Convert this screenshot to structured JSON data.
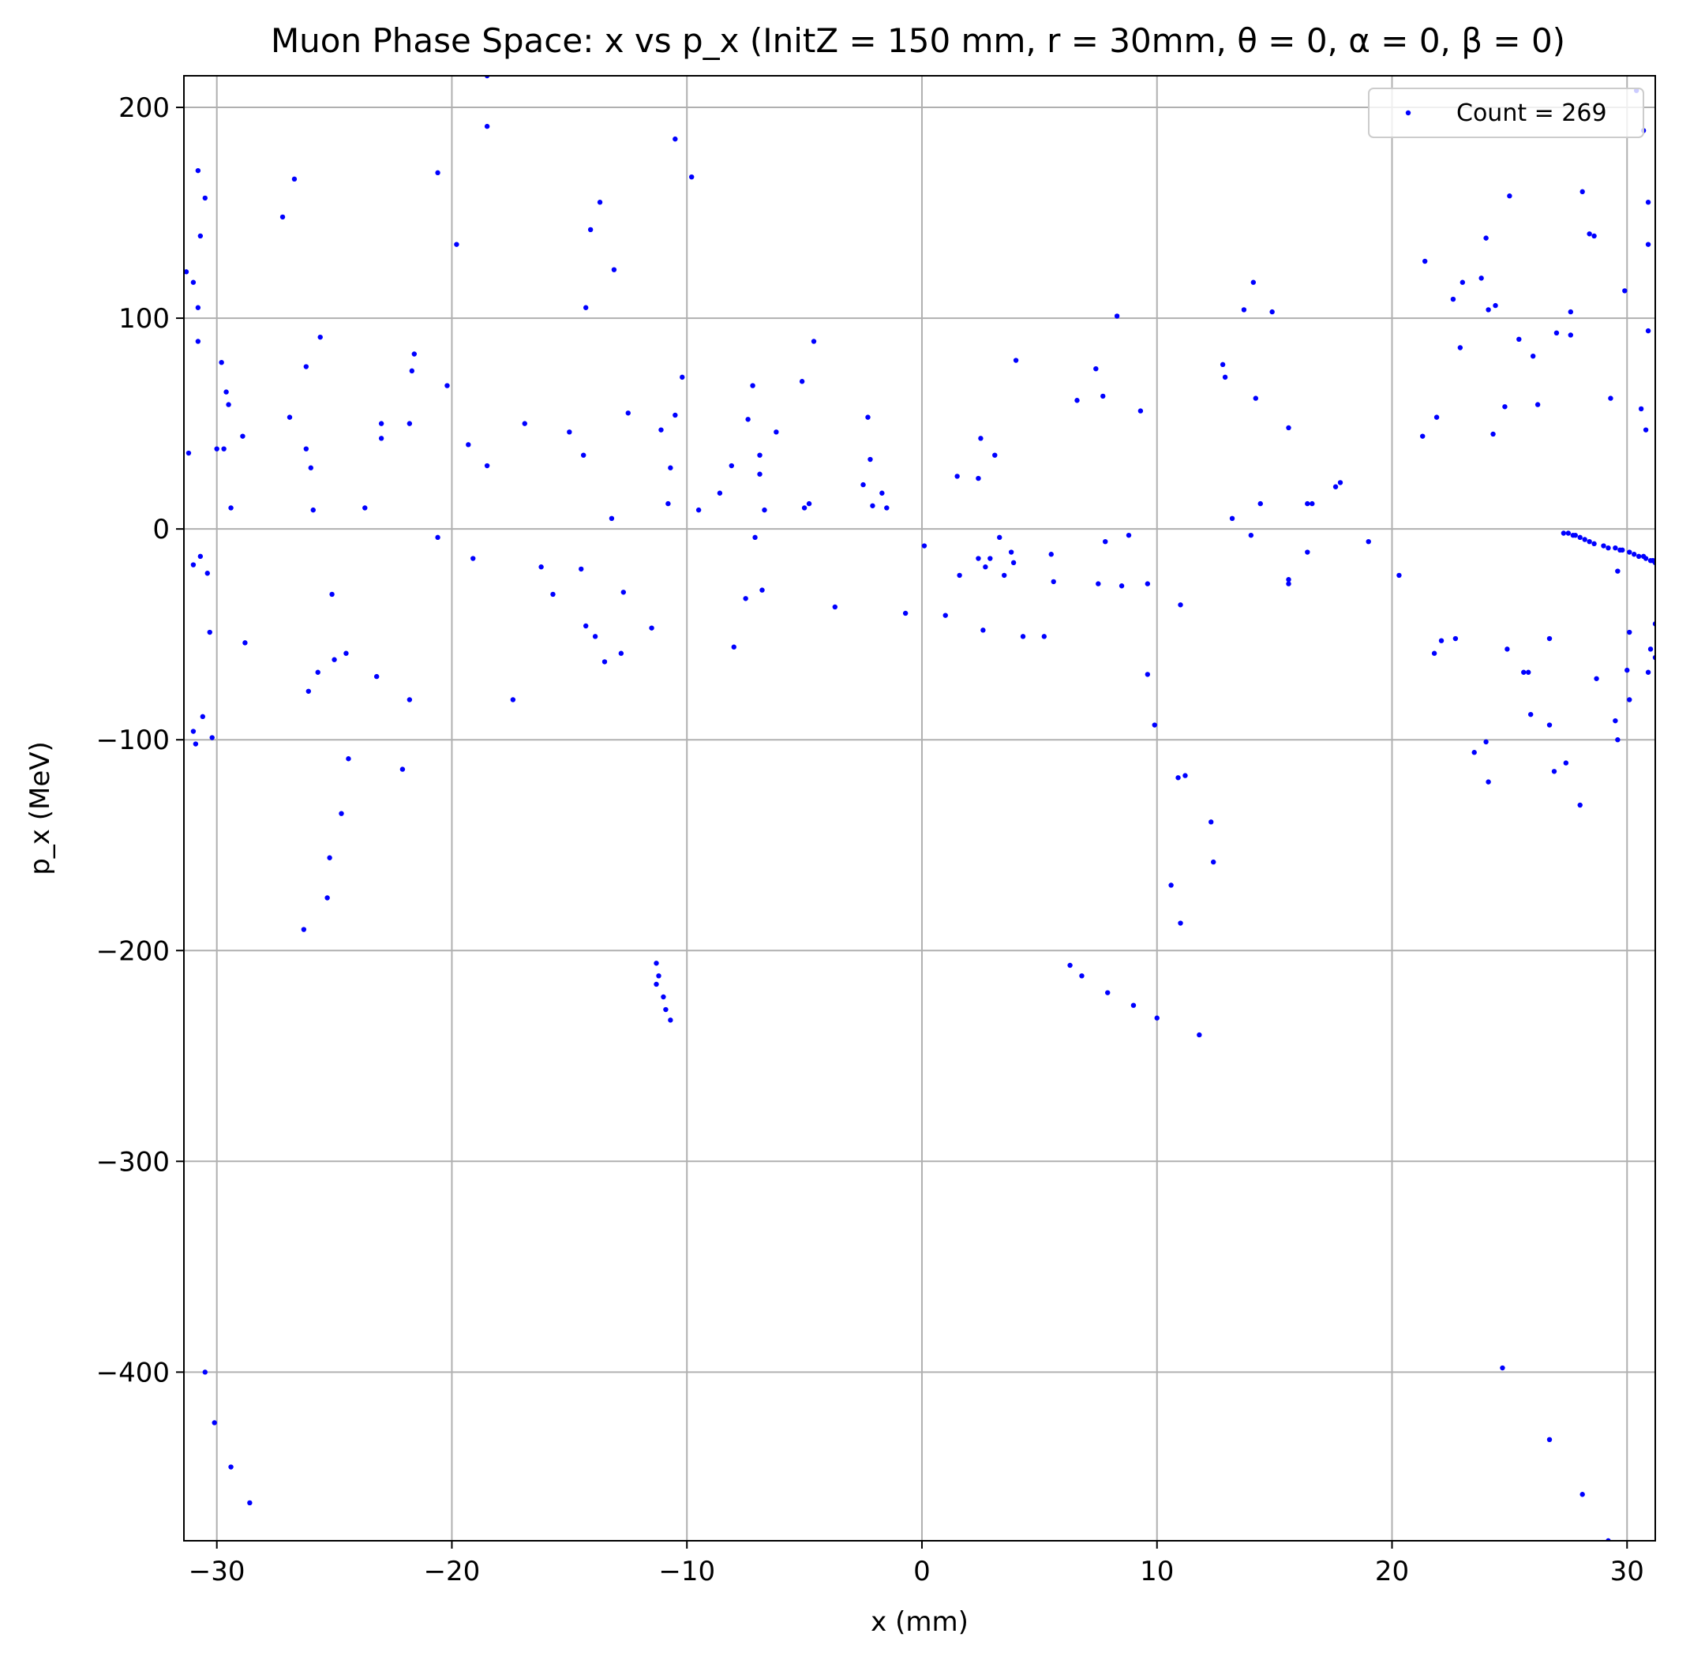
{
  "chart_data": {
    "type": "scatter",
    "title": "Muon Phase Space: x vs p_x (InitZ = 150 mm, r = 30mm, θ = 0, α = 0, β = 0)",
    "xlabel": "x (mm)",
    "ylabel": "p_x (MeV)",
    "xlim": [
      -31.4,
      31.2
    ],
    "ylim": [
      -480,
      215
    ],
    "xticks": [
      -30,
      -20,
      -10,
      0,
      10,
      20,
      30
    ],
    "yticks": [
      200,
      100,
      0,
      -100,
      -200,
      -300,
      -400
    ],
    "xtick_labels": [
      "−30",
      "−20",
      "−10",
      "0",
      "10",
      "20",
      "30"
    ],
    "ytick_labels": [
      "200",
      "100",
      "0",
      "−100",
      "−200",
      "−300",
      "−400"
    ],
    "grid": true,
    "legend_position": "top-right",
    "legend": "Count = 269",
    "marker_color": "#0000ff",
    "series": [
      {
        "name": "Count = 269",
        "points": [
          [
            -31.3,
            122
          ],
          [
            -31.2,
            36
          ],
          [
            -31.0,
            -17
          ],
          [
            -31.0,
            117
          ],
          [
            -31.0,
            -96
          ],
          [
            -30.9,
            -102
          ],
          [
            -30.8,
            170
          ],
          [
            -30.8,
            105
          ],
          [
            -30.8,
            89
          ],
          [
            -30.7,
            -13
          ],
          [
            -30.7,
            139
          ],
          [
            -30.6,
            -89
          ],
          [
            -30.5,
            157
          ],
          [
            -30.4,
            -21
          ],
          [
            -30.5,
            -400
          ],
          [
            -30.3,
            -49
          ],
          [
            -30.2,
            -99
          ],
          [
            -30.1,
            -424
          ],
          [
            -30.0,
            38
          ],
          [
            -29.8,
            79
          ],
          [
            -29.7,
            38
          ],
          [
            -29.6,
            65
          ],
          [
            -29.5,
            59
          ],
          [
            -29.4,
            -445
          ],
          [
            -29.4,
            10
          ],
          [
            -28.9,
            44
          ],
          [
            -28.8,
            -54
          ],
          [
            -28.6,
            -462
          ],
          [
            -27.2,
            148
          ],
          [
            -26.9,
            53
          ],
          [
            -26.7,
            166
          ],
          [
            -26.3,
            -190
          ],
          [
            -26.2,
            77
          ],
          [
            -26.2,
            38
          ],
          [
            -26.1,
            -77
          ],
          [
            -26.0,
            29
          ],
          [
            -25.9,
            9
          ],
          [
            -25.7,
            -68
          ],
          [
            -25.6,
            91
          ],
          [
            -25.3,
            -175
          ],
          [
            -25.2,
            -156
          ],
          [
            -25.1,
            -31
          ],
          [
            -25.0,
            -62
          ],
          [
            -24.7,
            -135
          ],
          [
            -24.5,
            -59
          ],
          [
            -24.4,
            -109
          ],
          [
            -23.7,
            10
          ],
          [
            -23.2,
            -70
          ],
          [
            -23.0,
            50
          ],
          [
            -23.0,
            43
          ],
          [
            -22.1,
            -114
          ],
          [
            -21.8,
            -81
          ],
          [
            -21.8,
            50
          ],
          [
            -21.7,
            75
          ],
          [
            -21.6,
            83
          ],
          [
            -20.6,
            169
          ],
          [
            -20.6,
            -4
          ],
          [
            -20.2,
            68
          ],
          [
            -19.8,
            135
          ],
          [
            -19.3,
            40
          ],
          [
            -19.1,
            -14
          ],
          [
            -18.5,
            215
          ],
          [
            -18.5,
            30
          ],
          [
            -18.5,
            191
          ],
          [
            -17.4,
            -81
          ],
          [
            -16.9,
            50
          ],
          [
            -16.2,
            -18
          ],
          [
            -15.7,
            -31
          ],
          [
            -15.0,
            46
          ],
          [
            -14.5,
            -19
          ],
          [
            -14.4,
            35
          ],
          [
            -14.3,
            -46
          ],
          [
            -14.3,
            105
          ],
          [
            -14.1,
            142
          ],
          [
            -13.9,
            -51
          ],
          [
            -13.7,
            155
          ],
          [
            -13.5,
            -63
          ],
          [
            -13.2,
            5
          ],
          [
            -13.1,
            123
          ],
          [
            -12.8,
            -59
          ],
          [
            -12.7,
            -30
          ],
          [
            -12.5,
            55
          ],
          [
            -11.5,
            -47
          ],
          [
            -11.3,
            -206
          ],
          [
            -11.3,
            -216
          ],
          [
            -11.2,
            -212
          ],
          [
            -11.1,
            47
          ],
          [
            -11.0,
            -222
          ],
          [
            -10.9,
            -228
          ],
          [
            -10.8,
            12
          ],
          [
            -10.7,
            29
          ],
          [
            -10.7,
            -233
          ],
          [
            -10.5,
            54
          ],
          [
            -10.5,
            185
          ],
          [
            -10.2,
            72
          ],
          [
            -9.8,
            167
          ],
          [
            -9.5,
            9
          ],
          [
            -8.6,
            17
          ],
          [
            -8.1,
            30
          ],
          [
            -8.0,
            -56
          ],
          [
            -7.5,
            -33
          ],
          [
            -7.4,
            52
          ],
          [
            -7.2,
            68
          ],
          [
            -7.1,
            -4
          ],
          [
            -6.9,
            35
          ],
          [
            -6.9,
            26
          ],
          [
            -6.8,
            -29
          ],
          [
            -6.7,
            9
          ],
          [
            -6.2,
            46
          ],
          [
            -5.1,
            70
          ],
          [
            -5.0,
            10
          ],
          [
            -4.8,
            12
          ],
          [
            -4.6,
            89
          ],
          [
            -3.7,
            -37
          ],
          [
            -2.5,
            21
          ],
          [
            -2.3,
            53
          ],
          [
            -2.2,
            33
          ],
          [
            -2.1,
            11
          ],
          [
            -1.7,
            17
          ],
          [
            -1.5,
            10
          ],
          [
            -0.7,
            -40
          ],
          [
            0.1,
            -8
          ],
          [
            1.0,
            -41
          ],
          [
            1.5,
            25
          ],
          [
            1.6,
            -22
          ],
          [
            2.4,
            -14
          ],
          [
            2.4,
            24
          ],
          [
            2.5,
            43
          ],
          [
            2.6,
            -48
          ],
          [
            2.7,
            -18
          ],
          [
            2.9,
            -14
          ],
          [
            3.1,
            35
          ],
          [
            3.3,
            -4
          ],
          [
            3.5,
            -22
          ],
          [
            3.8,
            -11
          ],
          [
            3.9,
            -16
          ],
          [
            4.0,
            80
          ],
          [
            4.3,
            -51
          ],
          [
            5.2,
            -51
          ],
          [
            5.5,
            -12
          ],
          [
            5.6,
            -25
          ],
          [
            6.3,
            -207
          ],
          [
            6.6,
            61
          ],
          [
            6.8,
            -212
          ],
          [
            7.4,
            76
          ],
          [
            7.5,
            -26
          ],
          [
            7.7,
            63
          ],
          [
            7.8,
            -6
          ],
          [
            7.9,
            -220
          ],
          [
            8.3,
            101
          ],
          [
            8.5,
            -27
          ],
          [
            8.8,
            -3
          ],
          [
            9.0,
            -226
          ],
          [
            9.3,
            56
          ],
          [
            9.6,
            -26
          ],
          [
            9.6,
            -69
          ],
          [
            9.9,
            -93
          ],
          [
            10.0,
            -232
          ],
          [
            10.6,
            -169
          ],
          [
            10.9,
            -118
          ],
          [
            11.0,
            -187
          ],
          [
            11.0,
            -36
          ],
          [
            11.2,
            -117
          ],
          [
            11.8,
            -240
          ],
          [
            12.3,
            -139
          ],
          [
            12.4,
            -158
          ],
          [
            12.8,
            78
          ],
          [
            12.9,
            72
          ],
          [
            13.2,
            5
          ],
          [
            13.7,
            104
          ],
          [
            14.0,
            -3
          ],
          [
            14.1,
            117
          ],
          [
            14.2,
            62
          ],
          [
            14.4,
            12
          ],
          [
            14.9,
            103
          ],
          [
            15.6,
            48
          ],
          [
            15.6,
            -24
          ],
          [
            15.6,
            -26
          ],
          [
            16.4,
            12
          ],
          [
            16.4,
            -11
          ],
          [
            16.6,
            12
          ],
          [
            17.6,
            20
          ],
          [
            17.8,
            22
          ],
          [
            19.0,
            -6
          ],
          [
            20.3,
            -22
          ],
          [
            21.3,
            44
          ],
          [
            21.4,
            127
          ],
          [
            21.8,
            -59
          ],
          [
            21.9,
            53
          ],
          [
            22.1,
            -53
          ],
          [
            22.6,
            109
          ],
          [
            22.7,
            -52
          ],
          [
            22.9,
            86
          ],
          [
            23.0,
            117
          ],
          [
            23.5,
            -106
          ],
          [
            23.8,
            119
          ],
          [
            24.0,
            138
          ],
          [
            24.0,
            -101
          ],
          [
            24.1,
            -120
          ],
          [
            24.1,
            104
          ],
          [
            24.3,
            45
          ],
          [
            24.4,
            106
          ],
          [
            24.8,
            58
          ],
          [
            24.7,
            -398
          ],
          [
            24.9,
            -57
          ],
          [
            25.0,
            158
          ],
          [
            25.4,
            90
          ],
          [
            25.6,
            -68
          ],
          [
            25.8,
            -68
          ],
          [
            25.9,
            -88
          ],
          [
            26.0,
            82
          ],
          [
            26.2,
            59
          ],
          [
            26.7,
            -93
          ],
          [
            26.7,
            -52
          ],
          [
            26.7,
            -432
          ],
          [
            26.9,
            -115
          ],
          [
            27.0,
            93
          ],
          [
            27.3,
            -2
          ],
          [
            27.4,
            -111
          ],
          [
            27.5,
            -2
          ],
          [
            27.6,
            103
          ],
          [
            27.6,
            92
          ],
          [
            27.7,
            -3
          ],
          [
            27.8,
            -3
          ],
          [
            28.0,
            -4
          ],
          [
            28.0,
            -131
          ],
          [
            28.1,
            160
          ],
          [
            28.2,
            -5
          ],
          [
            28.1,
            -458
          ],
          [
            28.4,
            -6
          ],
          [
            28.4,
            140
          ],
          [
            28.6,
            139
          ],
          [
            28.6,
            -7
          ],
          [
            28.7,
            -71
          ],
          [
            29.0,
            -8
          ],
          [
            29.2,
            -480
          ],
          [
            29.2,
            -9
          ],
          [
            29.3,
            62
          ],
          [
            29.5,
            -91
          ],
          [
            29.5,
            -9
          ],
          [
            29.6,
            -100
          ],
          [
            29.6,
            -20
          ],
          [
            29.7,
            -10
          ],
          [
            29.8,
            -10
          ],
          [
            29.9,
            113
          ],
          [
            30.0,
            -67
          ],
          [
            30.1,
            -49
          ],
          [
            30.1,
            -81
          ],
          [
            30.1,
            -11
          ],
          [
            30.3,
            -12
          ],
          [
            30.4,
            208
          ],
          [
            30.5,
            -13
          ],
          [
            30.6,
            57
          ],
          [
            30.7,
            -13
          ],
          [
            30.7,
            189
          ],
          [
            30.8,
            47
          ],
          [
            30.8,
            -14
          ],
          [
            30.9,
            135
          ],
          [
            30.9,
            155
          ],
          [
            30.9,
            -68
          ],
          [
            30.9,
            94
          ],
          [
            31.0,
            -15
          ],
          [
            31.0,
            -57
          ],
          [
            31.1,
            -15
          ],
          [
            31.1,
            -15
          ],
          [
            31.2,
            -16
          ],
          [
            31.2,
            -16
          ],
          [
            31.2,
            -61
          ],
          [
            31.2,
            -45
          ]
        ]
      }
    ]
  }
}
